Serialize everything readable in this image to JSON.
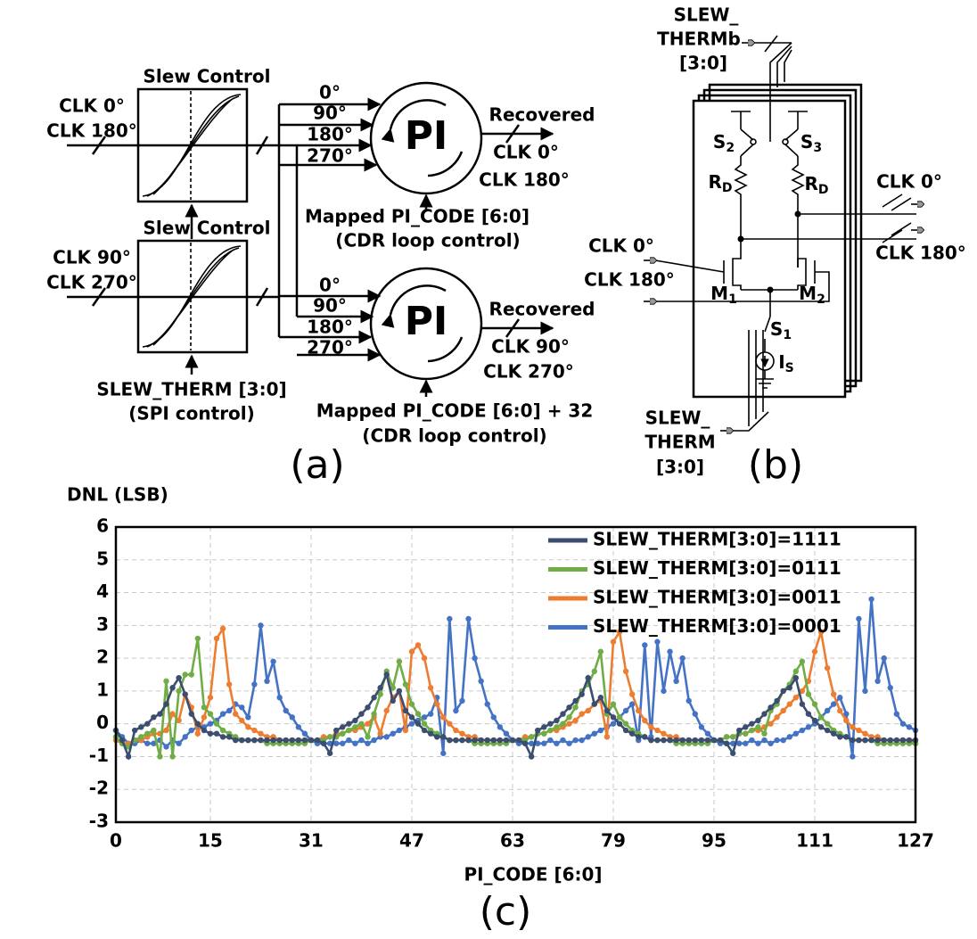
{
  "panel_a": {
    "slew_control_top": "Slew Control",
    "slew_control_bottom": "Slew Control",
    "inputs_top": [
      "CLK 0°",
      "CLK 180°"
    ],
    "inputs_bottom": [
      "CLK 90°",
      "CLK 270°"
    ],
    "phases_top": [
      "0°",
      "90°",
      "180°",
      "270°"
    ],
    "phases_bottom": [
      "0°",
      "90°",
      "180°",
      "270°"
    ],
    "pi_top": "PI",
    "pi_bottom": "PI",
    "recovered_top": "Recovered",
    "outputs_top": [
      "CLK 0°",
      "CLK 180°"
    ],
    "recovered_bottom": "Recovered",
    "outputs_bottom": [
      "CLK 90°",
      "CLK 270°"
    ],
    "code_top": [
      "Mapped PI_CODE [6:0]",
      "(CDR loop control)"
    ],
    "code_bottom": [
      "Mapped PI_CODE [6:0] + 32",
      "(CDR loop control)"
    ],
    "slew_therm": [
      "SLEW_THERM [3:0]",
      "(SPI control)"
    ],
    "label": "(a)"
  },
  "panel_b": {
    "slew_thermb": [
      "SLEW_",
      "THERMb",
      "[3:0]"
    ],
    "s2": {
      "text": "S",
      "sub": "2"
    },
    "s3": {
      "text": "S",
      "sub": "3"
    },
    "rd_left": {
      "text": "R",
      "sub": "D"
    },
    "rd_right": {
      "text": "R",
      "sub": "D"
    },
    "outputs": [
      "CLK 0°",
      "CLK 180°"
    ],
    "inputs": [
      "CLK 0°",
      "CLK 180°"
    ],
    "m1": {
      "text": "M",
      "sub": "1"
    },
    "m2": {
      "text": "M",
      "sub": "2"
    },
    "s1": {
      "text": "S",
      "sub": "1"
    },
    "is": {
      "text": "I",
      "sub": "S"
    },
    "slew_therm": [
      "SLEW_",
      "THERM",
      "[3:0]"
    ],
    "label": "(b)"
  },
  "chart_data": {
    "type": "line",
    "y_label": "DNL (LSB)",
    "x_label": "PI_CODE [6:0]",
    "caption": "(c)",
    "xlim": [
      0,
      127
    ],
    "ylim": [
      -3,
      6
    ],
    "xticks": [
      0,
      15,
      31,
      47,
      63,
      79,
      95,
      111,
      127
    ],
    "yticks": [
      -3,
      -2,
      -1,
      0,
      1,
      2,
      3,
      4,
      5,
      6
    ],
    "grid": true,
    "legend": "upper right",
    "markers": true,
    "x": [
      0,
      1,
      2,
      3,
      4,
      5,
      6,
      7,
      8,
      9,
      10,
      11,
      12,
      13,
      14,
      15,
      16,
      17,
      18,
      19,
      20,
      21,
      22,
      23,
      24,
      25,
      26,
      27,
      28,
      29,
      30,
      31,
      32,
      33,
      34,
      35,
      36,
      37,
      38,
      39,
      40,
      41,
      42,
      43,
      44,
      45,
      46,
      47,
      48,
      49,
      50,
      51,
      52,
      53,
      54,
      55,
      56,
      57,
      58,
      59,
      60,
      61,
      62,
      63,
      64,
      65,
      66,
      67,
      68,
      69,
      70,
      71,
      72,
      73,
      74,
      75,
      76,
      77,
      78,
      79,
      80,
      81,
      82,
      83,
      84,
      85,
      86,
      87,
      88,
      89,
      90,
      91,
      92,
      93,
      94,
      95,
      96,
      97,
      98,
      99,
      100,
      101,
      102,
      103,
      104,
      105,
      106,
      107,
      108,
      109,
      110,
      111,
      112,
      113,
      114,
      115,
      116,
      117,
      118,
      119,
      120,
      121,
      122,
      123,
      124,
      125,
      126,
      127
    ],
    "series": [
      {
        "name": "SLEW_THERM[3:0]=1111",
        "color": "#3b4e70",
        "values": [
          -0.2,
          -0.5,
          -1.0,
          -0.2,
          -0.1,
          0,
          0.2,
          0.3,
          0.6,
          1.1,
          1.4,
          0.9,
          0.3,
          0,
          -0.2,
          -0.3,
          -0.3,
          -0.4,
          -0.4,
          -0.5,
          -0.5,
          -0.5,
          -0.5,
          -0.5,
          -0.5,
          -0.5,
          -0.5,
          -0.5,
          -0.5,
          -0.5,
          -0.5,
          -0.5,
          -0.5,
          -0.6,
          -0.9,
          -0.2,
          -0.1,
          0,
          0.1,
          0.3,
          0.5,
          0.8,
          1.1,
          1.5,
          0.7,
          1.0,
          0.4,
          0.2,
          0,
          -0.2,
          -0.3,
          -0.4,
          -0.4,
          -0.5,
          -0.5,
          -0.5,
          -0.5,
          -0.5,
          -0.5,
          -0.5,
          -0.5,
          -0.5,
          -0.5,
          -0.5,
          -0.5,
          -0.6,
          -1.0,
          -0.2,
          -0.1,
          0,
          0.1,
          0.3,
          0.5,
          0.7,
          0.9,
          1.4,
          0.6,
          0.8,
          0.4,
          0.2,
          0,
          -0.2,
          -0.3,
          -0.4,
          -0.4,
          -0.5,
          -0.5,
          -0.5,
          -0.5,
          -0.5,
          -0.5,
          -0.5,
          -0.5,
          -0.5,
          -0.5,
          -0.5,
          -0.5,
          -0.6,
          -0.9,
          -0.2,
          -0.1,
          0,
          0.1,
          0.3,
          0.5,
          0.7,
          1.0,
          1.1,
          1.4,
          0.6,
          0.3,
          0.1,
          -0.1,
          -0.2,
          -0.3,
          -0.4,
          -0.4,
          -0.5,
          -0.5,
          -0.5,
          -0.5,
          -0.5,
          -0.5,
          -0.5,
          -0.5,
          -0.5,
          -0.5,
          -0.5
        ]
      },
      {
        "name": "SLEW_THERM[3:0]=0111",
        "color": "#70ad47",
        "values": [
          -0.4,
          -0.6,
          -0.7,
          -0.5,
          -0.4,
          -0.3,
          -0.2,
          -1.0,
          1.3,
          -1.0,
          1.0,
          1.5,
          1.5,
          2.6,
          0.5,
          0.3,
          0,
          -0.2,
          -0.3,
          -0.4,
          -0.5,
          -0.5,
          -0.5,
          -0.5,
          -0.6,
          -0.6,
          -0.6,
          -0.6,
          -0.6,
          -0.6,
          -0.6,
          -0.5,
          -0.5,
          -0.5,
          -0.4,
          -0.4,
          -0.3,
          -0.2,
          -0.1,
          0,
          -0.4,
          0.3,
          0.9,
          1.6,
          1.1,
          1.9,
          1.2,
          0.6,
          0.3,
          0,
          -0.2,
          -0.3,
          -0.4,
          -0.5,
          -0.5,
          -0.5,
          -0.5,
          -0.6,
          -0.6,
          -0.6,
          -0.6,
          -0.6,
          -0.6,
          -0.5,
          -0.5,
          -0.5,
          -0.4,
          -0.3,
          -0.3,
          -0.2,
          -0.1,
          0,
          0.2,
          0.5,
          1.0,
          1.2,
          1.6,
          2.2,
          0.3,
          0.6,
          0.2,
          0,
          -0.2,
          -0.3,
          -0.4,
          -0.5,
          -0.5,
          -0.5,
          -0.5,
          -0.6,
          -0.6,
          -0.6,
          -0.6,
          -0.6,
          -0.6,
          -0.5,
          -0.5,
          -0.4,
          -0.4,
          -0.3,
          -0.3,
          -0.2,
          -0.1,
          -0.3,
          0.4,
          0.6,
          1.0,
          1.2,
          1.6,
          1.9,
          0.9,
          0.6,
          0.2,
          0,
          -0.2,
          -0.3,
          -0.4,
          -0.5,
          -0.5,
          -0.5,
          -0.5,
          -0.6,
          -0.6,
          -0.6,
          -0.6,
          -0.6,
          -0.6,
          -0.6
        ]
      },
      {
        "name": "SLEW_THERM[3:0]=0011",
        "color": "#ed7d31",
        "values": [
          -0.5,
          -0.6,
          -0.6,
          -0.5,
          -0.5,
          -0.4,
          -0.3,
          -0.3,
          -0.2,
          0.3,
          0.1,
          0.9,
          0.5,
          -0.3,
          0.2,
          0.8,
          2.6,
          2.9,
          1.2,
          0.3,
          0.1,
          -0.1,
          -0.2,
          -0.3,
          -0.4,
          -0.4,
          -0.5,
          -0.5,
          -0.5,
          -0.5,
          -0.5,
          -0.5,
          -0.5,
          -0.4,
          -0.4,
          -0.3,
          -0.3,
          -0.2,
          -0.2,
          -0.1,
          0,
          0.2,
          -0.3,
          0.4,
          0.8,
          1.0,
          -0.2,
          2.2,
          2.4,
          2.0,
          1.1,
          0.6,
          0.2,
          0,
          -0.2,
          -0.3,
          -0.4,
          -0.4,
          -0.5,
          -0.5,
          -0.5,
          -0.5,
          -0.5,
          -0.5,
          -0.5,
          -0.4,
          -0.4,
          -0.3,
          -0.3,
          -0.2,
          -0.2,
          -0.1,
          0,
          0.1,
          0.3,
          0.4,
          0.6,
          0.7,
          -0.4,
          2.5,
          2.8,
          1.6,
          0.9,
          0.4,
          0.1,
          -0.1,
          -0.2,
          -0.3,
          -0.4,
          -0.4,
          -0.5,
          -0.5,
          -0.5,
          -0.5,
          -0.5,
          -0.5,
          -0.5,
          -0.4,
          -0.4,
          -0.3,
          -0.3,
          -0.2,
          -0.2,
          -0.1,
          0,
          0.2,
          0.4,
          0.6,
          0.8,
          1.0,
          1.3,
          2.2,
          2.8,
          1.7,
          0.9,
          0.4,
          0.1,
          -0.1,
          -0.2,
          -0.3,
          -0.4,
          -0.4,
          -0.5,
          -0.5,
          -0.5,
          -0.5,
          -0.5,
          -0.6
        ]
      },
      {
        "name": "SLEW_THERM[3:0]=0001",
        "color": "#4472c4",
        "values": [
          -0.2,
          -0.4,
          -0.6,
          -0.6,
          -0.5,
          -0.6,
          -0.6,
          -0.5,
          -0.7,
          -0.5,
          -0.6,
          -0.4,
          -0.2,
          -0.1,
          -0.1,
          0,
          0.1,
          0.3,
          0.4,
          0.6,
          0.5,
          0.2,
          1.2,
          3.0,
          1.3,
          1.9,
          0.8,
          0.4,
          0.2,
          -0.1,
          -0.3,
          -0.5,
          -0.6,
          -0.6,
          -0.6,
          -0.6,
          -0.6,
          -0.5,
          -0.6,
          -0.5,
          -0.6,
          -0.5,
          -0.4,
          -0.4,
          -0.3,
          -0.2,
          -0.1,
          0,
          0.1,
          0.2,
          0.3,
          0.8,
          -0.9,
          3.2,
          0.4,
          0.7,
          3.2,
          2.0,
          1.3,
          0.6,
          0.2,
          -0.1,
          -0.3,
          -0.5,
          -0.6,
          -0.6,
          -0.6,
          -0.6,
          -0.6,
          -0.5,
          -0.6,
          -0.5,
          -0.6,
          -0.5,
          -0.5,
          -0.4,
          -0.3,
          -0.2,
          -0.1,
          0,
          0.2,
          0.4,
          0.6,
          -0.5,
          2.4,
          -0.4,
          2.5,
          1.0,
          2.2,
          1.3,
          2.0,
          0.7,
          0.3,
          -0.1,
          -0.3,
          -0.5,
          -0.6,
          -0.6,
          -0.6,
          -0.6,
          -0.6,
          -0.5,
          -0.6,
          -0.5,
          -0.6,
          -0.5,
          -0.5,
          -0.4,
          -0.3,
          -0.2,
          -0.1,
          0,
          0.2,
          0.4,
          0.6,
          0.8,
          0.3,
          -1.0,
          3.2,
          1.0,
          3.8,
          1.3,
          2.0,
          1.1,
          0.3,
          0,
          -0.1,
          -0.2
        ]
      }
    ]
  }
}
